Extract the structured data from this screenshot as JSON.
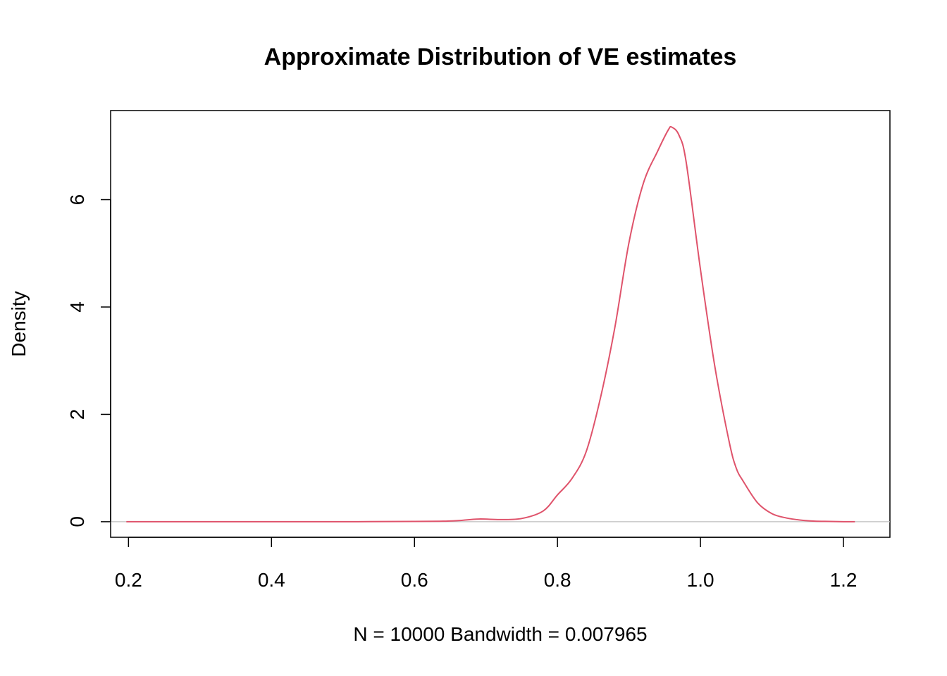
{
  "chart_data": {
    "type": "line",
    "title": "Approximate Distribution of VE estimates",
    "xlabel": "N = 10000   Bandwidth = 0.007965",
    "ylabel": "Density",
    "xlim": [
      0.175,
      1.265
    ],
    "ylim": [
      -0.29,
      7.66
    ],
    "x_ticks": [
      0.2,
      0.4,
      0.6,
      0.8,
      1.0,
      1.2
    ],
    "x_tick_labels": [
      "0.2",
      "0.4",
      "0.6",
      "0.8",
      "1.0",
      "1.2"
    ],
    "y_ticks": [
      0,
      2,
      4,
      6
    ],
    "y_tick_labels": [
      "0",
      "2",
      "4",
      "6"
    ],
    "grid": false,
    "legend": "none",
    "series": [
      {
        "color": "#DF536B",
        "x": [
          0.197,
          0.3,
          0.4,
          0.5,
          0.6,
          0.64,
          0.66,
          0.69,
          0.72,
          0.75,
          0.78,
          0.8,
          0.82,
          0.84,
          0.86,
          0.88,
          0.9,
          0.92,
          0.94,
          0.955,
          0.96,
          0.97,
          0.98,
          1.0,
          1.02,
          1.04,
          1.05,
          1.06,
          1.08,
          1.1,
          1.12,
          1.14,
          1.16,
          1.18,
          1.2,
          1.216
        ],
        "y": [
          0.0,
          0.0,
          0.0,
          0.0,
          0.005,
          0.01,
          0.02,
          0.05,
          0.04,
          0.06,
          0.2,
          0.5,
          0.8,
          1.3,
          2.3,
          3.6,
          5.2,
          6.3,
          6.9,
          7.3,
          7.35,
          7.2,
          6.7,
          4.7,
          2.9,
          1.5,
          1.0,
          0.75,
          0.35,
          0.15,
          0.07,
          0.03,
          0.01,
          0.005,
          0.0,
          0.0
        ]
      }
    ],
    "baseline_color": "#BEBEBE"
  }
}
